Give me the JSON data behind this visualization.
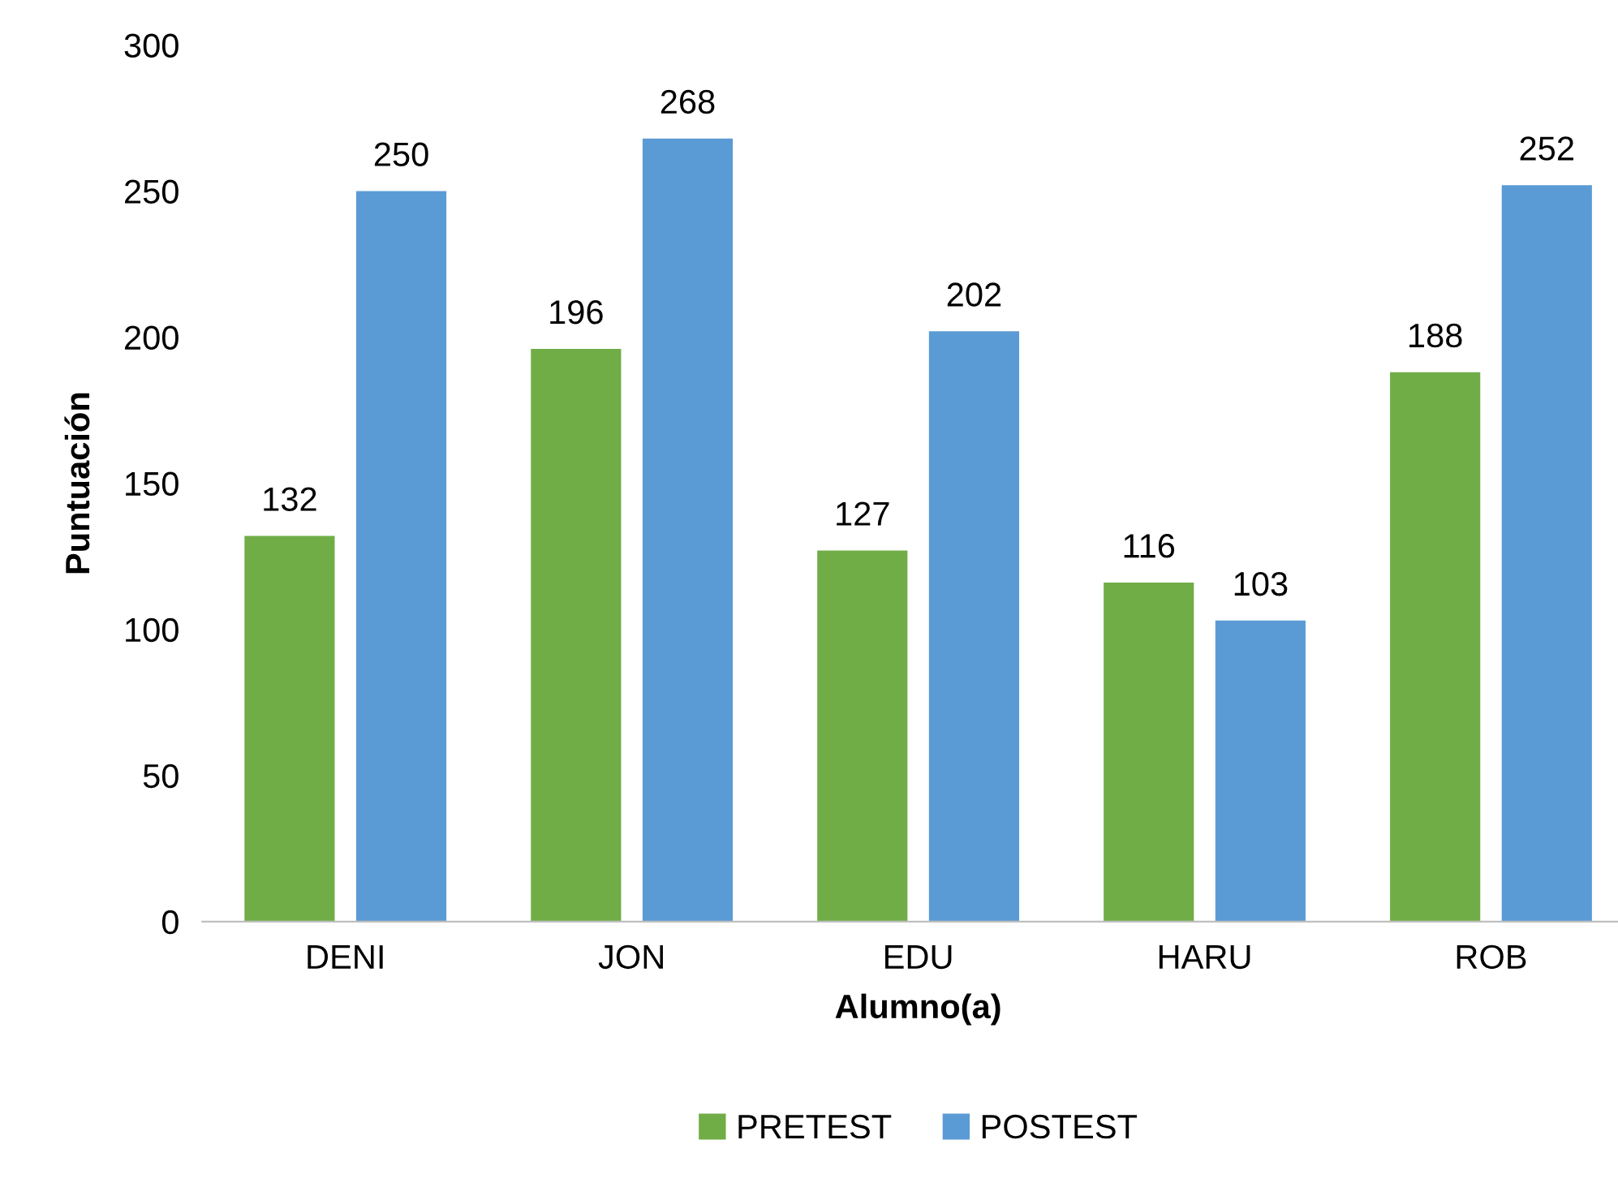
{
  "chart_data": {
    "type": "bar",
    "xlabel": "Alumno(a)",
    "ylabel": "Puntuación",
    "categories": [
      "DENI",
      "JON",
      "EDU",
      "HARU",
      "ROB"
    ],
    "series": [
      {
        "name": "PRETEST",
        "color": "#70ad47",
        "values": [
          132,
          196,
          127,
          116,
          188
        ]
      },
      {
        "name": "POSTEST",
        "color": "#5b9bd5",
        "values": [
          250,
          268,
          202,
          103,
          252
        ]
      }
    ],
    "ylim": [
      0,
      300
    ],
    "yticks": [
      0,
      50,
      100,
      150,
      200,
      250,
      300
    ],
    "grid": false,
    "legend": "bottom",
    "data_labels": true
  }
}
